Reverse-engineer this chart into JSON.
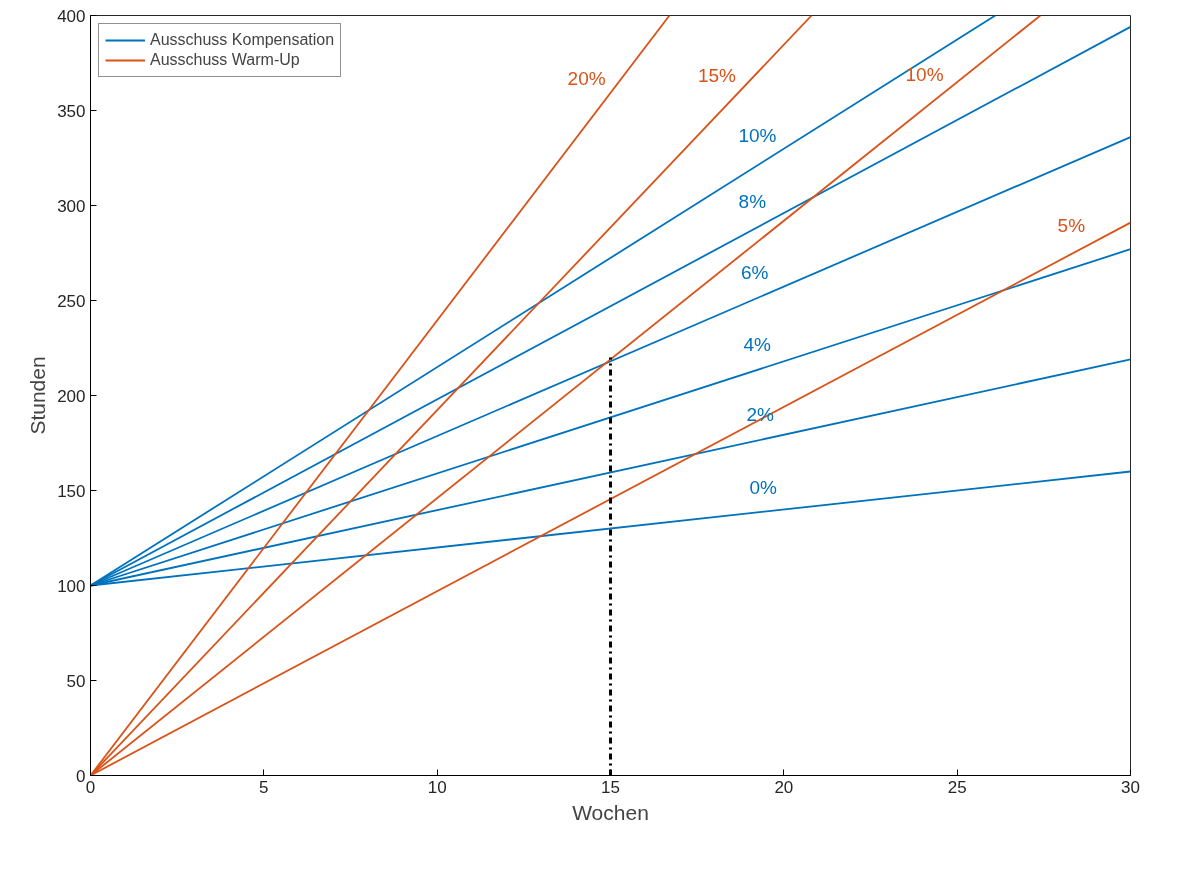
{
  "chart_data": {
    "type": "line",
    "xlabel": "Wochen",
    "ylabel": "Stunden",
    "xlim": [
      0,
      30
    ],
    "ylim": [
      0,
      400
    ],
    "xticks": [
      0,
      5,
      10,
      15,
      20,
      25,
      30
    ],
    "yticks": [
      0,
      50,
      100,
      150,
      200,
      250,
      300,
      350,
      400
    ],
    "grid": false,
    "legend": "top left",
    "line_style": "solid",
    "marker": "none",
    "series": [
      {
        "color": "#0072bd",
        "x": [
          0,
          30
        ],
        "values": [
          100,
          160
        ]
      },
      {
        "color": "#0072bd",
        "x": [
          0,
          30
        ],
        "values": [
          100,
          219
        ]
      },
      {
        "color": "#0072bd",
        "x": [
          0,
          30
        ],
        "values": [
          100,
          277
        ]
      },
      {
        "color": "#0072bd",
        "x": [
          0,
          30
        ],
        "values": [
          100,
          336
        ]
      },
      {
        "color": "#0072bd",
        "x": [
          0,
          30
        ],
        "values": [
          100,
          394
        ]
      },
      {
        "name": "Ausschuss Kompensation",
        "color": "#0072bd",
        "x": [
          0,
          26.1
        ],
        "values": [
          100,
          400
        ]
      },
      {
        "name": "Ausschuss Warm-Up",
        "color": "#d95319",
        "x": [
          0,
          30
        ],
        "values": [
          0,
          291
        ]
      },
      {
        "color": "#d95319",
        "x": [
          0,
          27.4
        ],
        "values": [
          0,
          400
        ]
      },
      {
        "color": "#d95319",
        "x": [
          0,
          20.8
        ],
        "values": [
          0,
          400
        ]
      },
      {
        "color": "#d95319",
        "x": [
          0,
          16.7
        ],
        "values": [
          0,
          400
        ]
      },
      {
        "color": "#000000",
        "x": [
          15,
          15
        ],
        "values": [
          0,
          220
        ],
        "line_style": "dashed"
      }
    ],
    "annotations": [
      {
        "text": "20%",
        "x": 15.0,
        "y": 359.3
      },
      {
        "text": "15%",
        "x": 18.7,
        "y": 359.6
      },
      {
        "text": "10%",
        "x": 19.7,
        "y": 326.4
      },
      {
        "text": "10%",
        "x": 24.6,
        "y": 359.1
      },
      {
        "text": "8%",
        "x": 19.5,
        "y": 291.1
      },
      {
        "text": "6%",
        "x": 19.5,
        "y": 253.4
      },
      {
        "text": "4%",
        "x": 19.5,
        "y": 215.0
      },
      {
        "text": "2%",
        "x": 19.5,
        "y": 177.4
      },
      {
        "text": "0%",
        "x": 19.5,
        "y": 139.0
      },
      {
        "text": "5%",
        "x": 28.7,
        "y": 278.4
      }
    ]
  }
}
